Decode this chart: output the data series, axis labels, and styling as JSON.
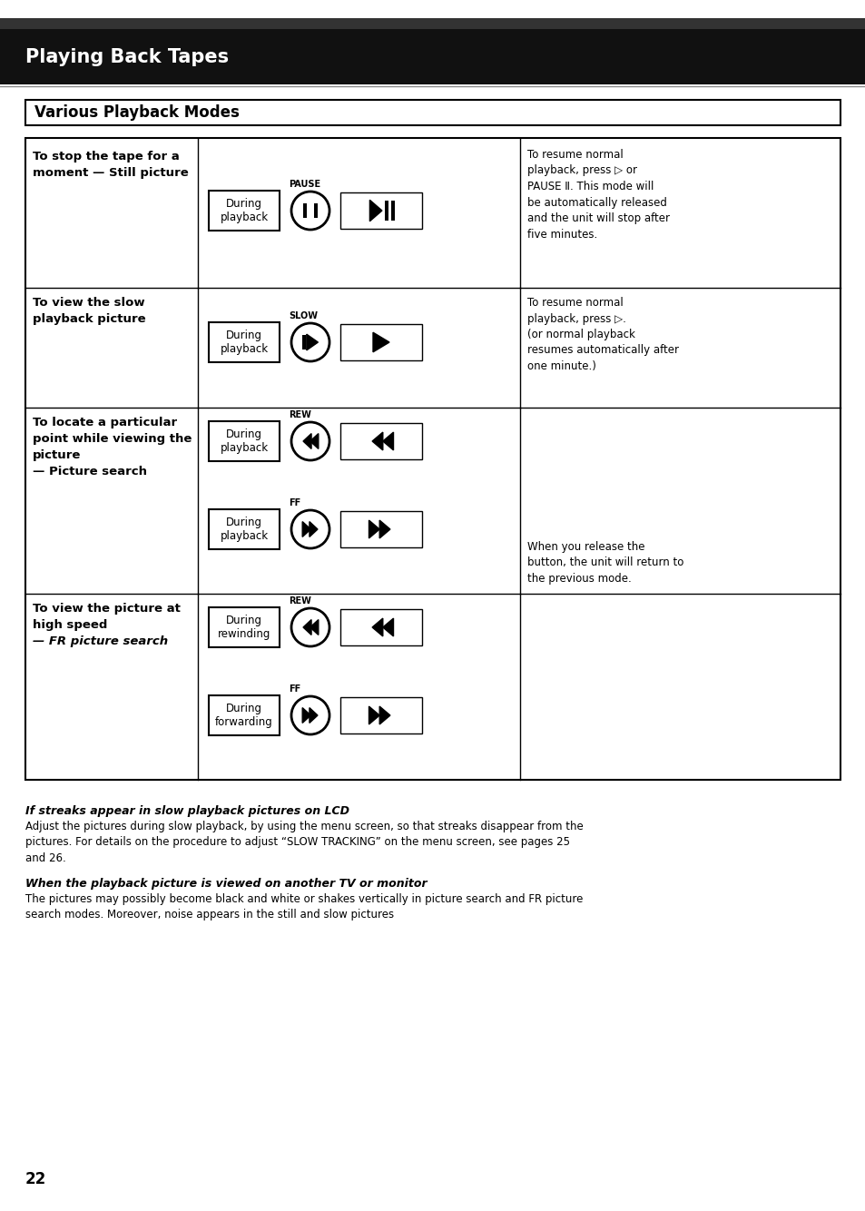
{
  "page_title": "Playing Back Tapes",
  "section_title": "Various Playback Modes",
  "bg_color": "#ffffff",
  "header_bg": "#000000",
  "header_text_color": "#ffffff",
  "page_number": "22",
  "note1_title": "If streaks appear in slow playback pictures on LCD",
  "note1_body": "Adjust the pictures during slow playback, by using the menu screen, so that streaks disappear from the\npictures. For details on the procedure to adjust “SLOW TRACKING” on the menu screen, see pages 25\nand 26.",
  "note2_title": "When the playback picture is viewed on another TV or monitor",
  "note2_body": "The pictures may possibly become black and white or shakes vertically in picture search and FR picture\nsearch modes. Moreover, noise appears in the still and slow pictures"
}
